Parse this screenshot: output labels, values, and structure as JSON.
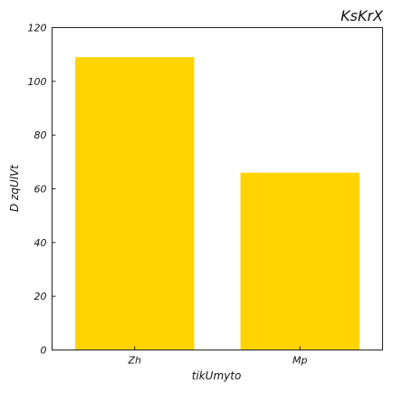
{
  "chart_data": {
    "type": "bar",
    "title": "KsKrX",
    "title_position": "top-right",
    "xlabel": "tikUmyto",
    "ylabel": "D zqUlVt",
    "categories": [
      "Zh",
      "Mp"
    ],
    "values": [
      109,
      66
    ],
    "ylim": [
      0,
      120
    ],
    "yticks": [
      "0",
      "20",
      "40",
      "60",
      "80",
      "100",
      "120"
    ],
    "grid": false,
    "bar_color": "#FFD400"
  }
}
